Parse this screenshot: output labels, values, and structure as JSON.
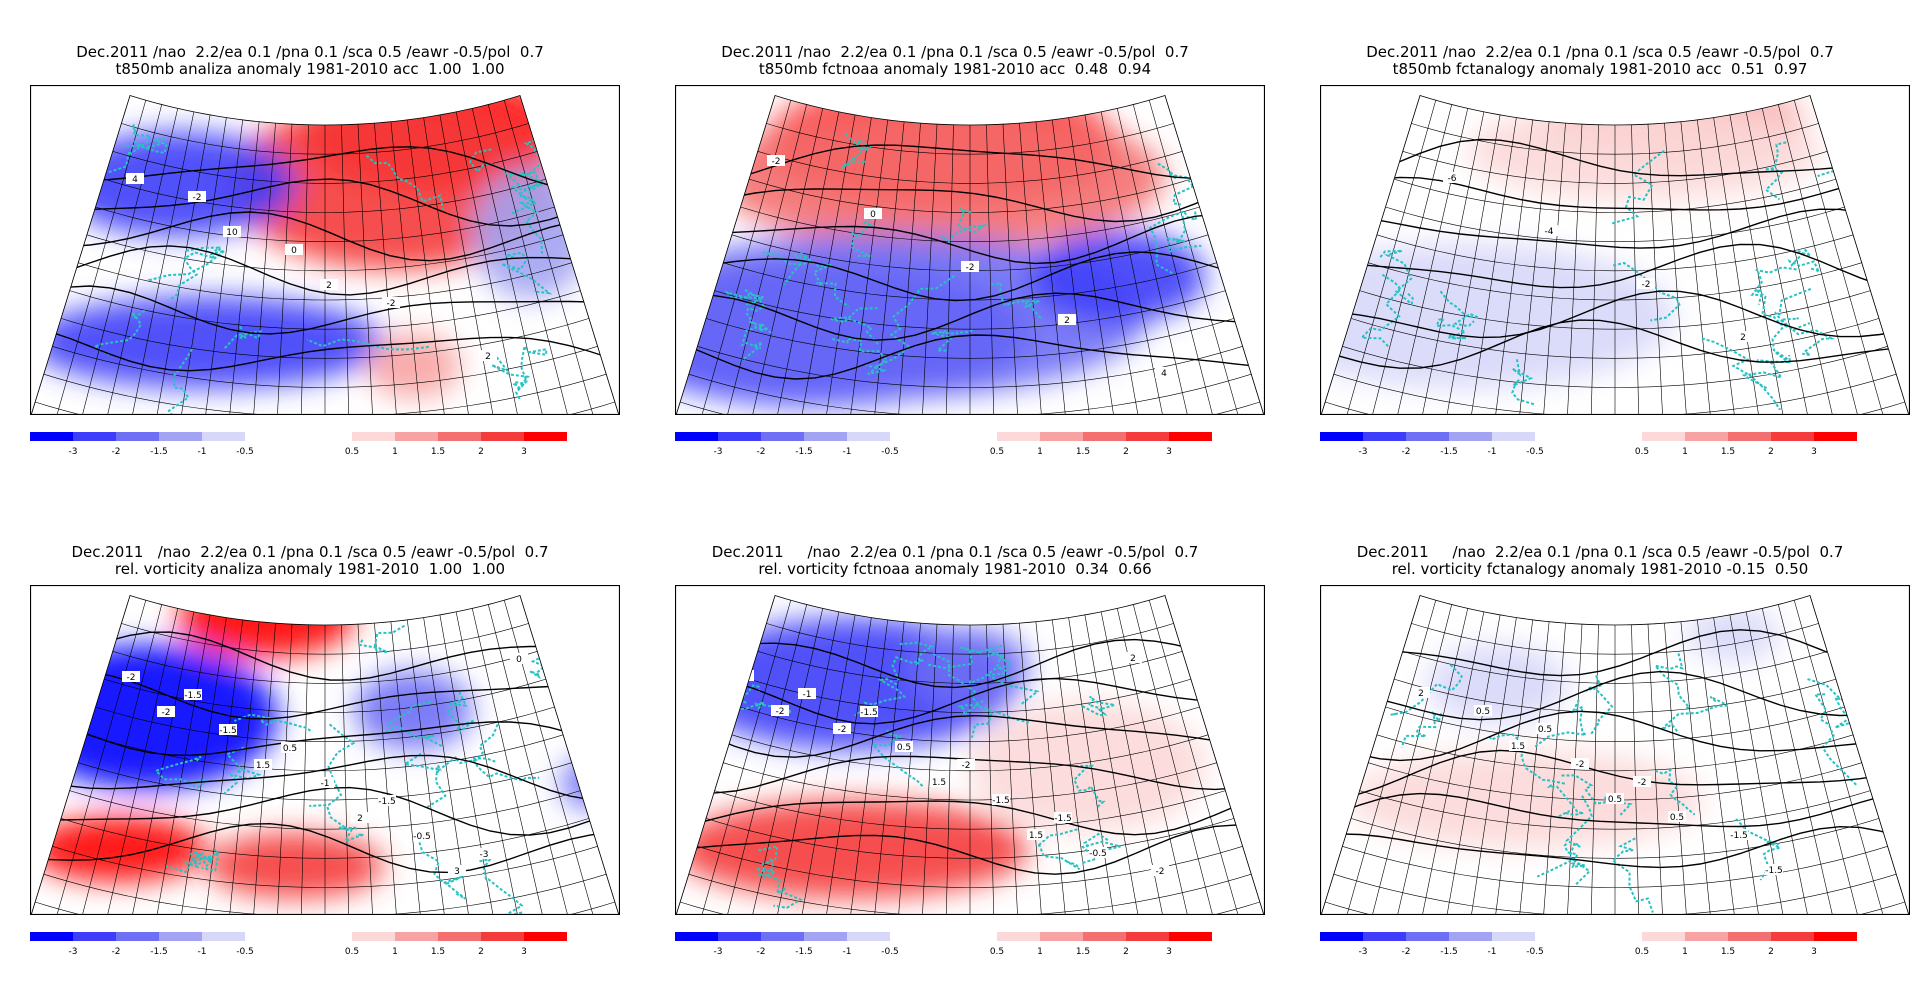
{
  "colors": {
    "neg3": "#0000ff",
    "neg2": "#3d3dfa",
    "neg15": "#6f6ff6",
    "neg1": "#a3a3f3",
    "neg05": "#d7d7fa",
    "pos05": "#fcd8d8",
    "pos1": "#f8a3a3",
    "pos15": "#f47070",
    "pos2": "#f53c3c",
    "pos3": "#ff0000",
    "coast": "#27c2c2",
    "contour": "#000000"
  },
  "colorbar": {
    "neg_labels": [
      "-3",
      "-2",
      "-1.5",
      "-1",
      "-0.5"
    ],
    "pos_labels": [
      "0.5",
      "1",
      "1.5",
      "2",
      "3"
    ]
  },
  "chart_data": [
    {
      "type": "heatmap",
      "title_line1": "Dec.2011 /nao  2.2/ea 0.1 /pna 0.1 /sca 0.5 /eawr -0.5/pol  0.7",
      "title_line2": "t850mb analiza anomaly 1981-2010 acc  1.00  1.00",
      "variable": "t850mb",
      "source": "analiza",
      "acc": [
        1.0,
        1.0
      ],
      "contour_labels": [
        "-4",
        "-2",
        "0",
        "-2",
        "2",
        "4",
        "10",
        "2"
      ],
      "blobs": [
        {
          "cx": 0.68,
          "cy": 0.14,
          "rx": 0.22,
          "ry": 0.18,
          "level": "pos3"
        },
        {
          "cx": 0.62,
          "cy": 0.3,
          "rx": 0.28,
          "ry": 0.26,
          "level": "pos2"
        },
        {
          "cx": 0.25,
          "cy": 0.3,
          "rx": 0.2,
          "ry": 0.16,
          "level": "neg2"
        },
        {
          "cx": 0.3,
          "cy": 0.78,
          "rx": 0.3,
          "ry": 0.14,
          "level": "neg2"
        },
        {
          "cx": 0.85,
          "cy": 0.45,
          "rx": 0.1,
          "ry": 0.2,
          "level": "neg1"
        },
        {
          "cx": 0.65,
          "cy": 0.85,
          "rx": 0.08,
          "ry": 0.1,
          "level": "pos1"
        }
      ]
    },
    {
      "type": "heatmap",
      "title_line1": "Dec.2011 /nao  2.2/ea 0.1 /pna 0.1 /sca 0.5 /eawr -0.5/pol  0.7",
      "title_line2": "t850mb fctnoaa anomaly 1981-2010 acc  0.48  0.94",
      "variable": "t850mb",
      "source": "fctnoaa",
      "acc": [
        0.48,
        0.94
      ],
      "contour_labels": [
        "-2",
        "0",
        "-2",
        "2",
        "4"
      ],
      "blobs": [
        {
          "cx": 0.45,
          "cy": 0.18,
          "rx": 0.3,
          "ry": 0.2,
          "level": "pos3"
        },
        {
          "cx": 0.45,
          "cy": 0.28,
          "rx": 0.38,
          "ry": 0.22,
          "level": "pos15"
        },
        {
          "cx": 0.25,
          "cy": 0.75,
          "rx": 0.35,
          "ry": 0.22,
          "level": "neg3"
        },
        {
          "cx": 0.35,
          "cy": 0.7,
          "rx": 0.45,
          "ry": 0.25,
          "level": "neg15"
        },
        {
          "cx": 0.75,
          "cy": 0.58,
          "rx": 0.15,
          "ry": 0.14,
          "level": "neg2"
        }
      ]
    },
    {
      "type": "heatmap",
      "title_line1": "Dec.2011 /nao  2.2/ea 0.1 /pna 0.1 /sca 0.5 /eawr -0.5/pol  0.7",
      "title_line2": "t850mb fctanalogy anomaly 1981-2010 acc  0.51  0.97",
      "variable": "t850mb",
      "source": "fctanalogy",
      "acc": [
        0.51,
        0.97
      ],
      "contour_labels": [
        "-6",
        "-4",
        "-2",
        "2",
        "6"
      ],
      "blobs": [
        {
          "cx": 0.6,
          "cy": 0.1,
          "rx": 0.22,
          "ry": 0.12,
          "level": "pos1"
        },
        {
          "cx": 0.55,
          "cy": 0.2,
          "rx": 0.3,
          "ry": 0.15,
          "level": "pos05"
        },
        {
          "cx": 0.25,
          "cy": 0.7,
          "rx": 0.35,
          "ry": 0.22,
          "level": "neg05"
        }
      ]
    },
    {
      "type": "heatmap",
      "title_line1": "Dec.2011   /nao  2.2/ea 0.1 /pna 0.1 /sca 0.5 /eawr -0.5/pol  0.7",
      "title_line2": "rel. vorticity analiza anomaly 1981-2010  1.00  1.00",
      "variable": "rel. vorticity",
      "source": "analiza",
      "acc": [
        1.0,
        1.0
      ],
      "contour_labels": [
        "-1.5",
        "0.5",
        "-1.5",
        "-3",
        "-2",
        "-1.5",
        "-1",
        "-0.5",
        "0",
        "-2",
        "1.5",
        "2",
        "3"
      ],
      "blobs": [
        {
          "cx": 0.4,
          "cy": 0.1,
          "rx": 0.15,
          "ry": 0.12,
          "level": "pos3"
        },
        {
          "cx": 0.2,
          "cy": 0.4,
          "rx": 0.22,
          "ry": 0.22,
          "level": "neg3"
        },
        {
          "cx": 0.65,
          "cy": 0.38,
          "rx": 0.1,
          "ry": 0.12,
          "level": "neg15"
        },
        {
          "cx": 0.15,
          "cy": 0.8,
          "rx": 0.15,
          "ry": 0.1,
          "level": "pos3"
        },
        {
          "cx": 0.45,
          "cy": 0.85,
          "rx": 0.15,
          "ry": 0.1,
          "level": "pos2"
        },
        {
          "cx": 0.95,
          "cy": 0.6,
          "rx": 0.05,
          "ry": 0.08,
          "level": "neg15"
        }
      ]
    },
    {
      "type": "heatmap",
      "title_line1": "Dec.2011     /nao  2.2/ea 0.1 /pna 0.1 /sca 0.5 /eawr -0.5/pol  0.7",
      "title_line2": "rel. vorticity fctnoaa anomaly 1981-2010  0.34  0.66",
      "variable": "rel. vorticity",
      "source": "fctnoaa",
      "acc": [
        0.34,
        0.66
      ],
      "contour_labels": [
        "-1.5",
        "-2",
        "-1.5",
        "-2",
        "-1",
        "0.5",
        "-1.5",
        "-0.5",
        "0",
        "-2",
        "1.5",
        "1.5",
        "2",
        "-2"
      ],
      "blobs": [
        {
          "cx": 0.3,
          "cy": 0.3,
          "rx": 0.28,
          "ry": 0.2,
          "level": "neg2"
        },
        {
          "cx": 0.5,
          "cy": 0.25,
          "rx": 0.1,
          "ry": 0.12,
          "level": "neg15"
        },
        {
          "cx": 0.3,
          "cy": 0.8,
          "rx": 0.3,
          "ry": 0.15,
          "level": "pos2"
        },
        {
          "cx": 0.7,
          "cy": 0.55,
          "rx": 0.2,
          "ry": 0.2,
          "level": "pos05"
        }
      ]
    },
    {
      "type": "heatmap",
      "title_line1": "Dec.2011     /nao  2.2/ea 0.1 /pna 0.1 /sca 0.5 /eawr -0.5/pol  0.7",
      "title_line2": "rel. vorticity fctanalogy anomaly 1981-2010 -0.15  0.50",
      "variable": "rel. vorticity",
      "source": "fctanalogy",
      "acc": [
        -0.15,
        0.5
      ],
      "contour_labels": [
        "0.5",
        "-2",
        "-1.5",
        "0.5",
        "0.5",
        "-2",
        "0.5",
        "-1.5",
        "2",
        "1.5",
        "0.5"
      ],
      "blobs": [
        {
          "cx": 0.3,
          "cy": 0.3,
          "rx": 0.12,
          "ry": 0.12,
          "level": "neg05"
        },
        {
          "cx": 0.35,
          "cy": 0.65,
          "rx": 0.3,
          "ry": 0.15,
          "level": "pos05"
        },
        {
          "cx": 0.7,
          "cy": 0.15,
          "rx": 0.08,
          "ry": 0.08,
          "level": "neg05"
        }
      ]
    }
  ]
}
